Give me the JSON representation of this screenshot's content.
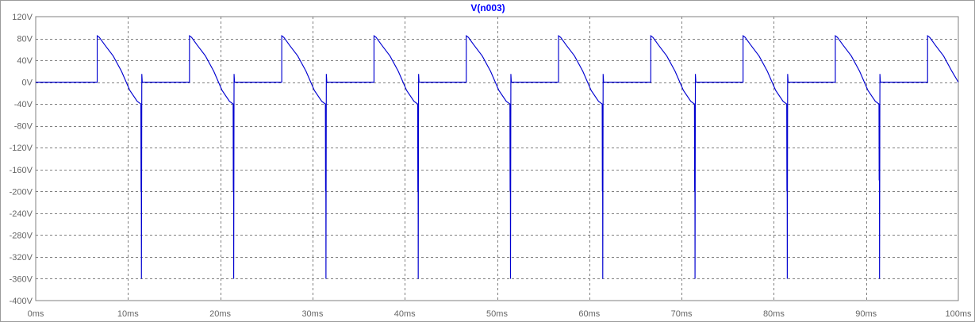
{
  "chart_data": {
    "type": "line",
    "title": "V(n003)",
    "xlabel": "",
    "ylabel": "",
    "xlim": [
      0,
      100
    ],
    "ylim": [
      -400,
      120
    ],
    "grid": true,
    "x_ticks": [
      0,
      10,
      20,
      30,
      40,
      50,
      60,
      70,
      80,
      90,
      100
    ],
    "y_ticks": [
      120,
      80,
      40,
      0,
      -40,
      -80,
      -120,
      -160,
      -200,
      -240,
      -280,
      -320,
      -360,
      -400
    ],
    "x_tick_labels": [
      "0ms",
      "10ms",
      "20ms",
      "30ms",
      "40ms",
      "50ms",
      "60ms",
      "70ms",
      "80ms",
      "90ms",
      "100ms"
    ],
    "y_tick_labels": [
      "120V",
      "80V",
      "40V",
      "0V",
      "-40V",
      "-80V",
      "-120V",
      "-160V",
      "-200V",
      "-240V",
      "-280V",
      "-320V",
      "-360V",
      "-400V"
    ],
    "series": [
      {
        "name": "V(n003)",
        "color": "#0000d0",
        "x": [
          0,
          6.667,
          6.667,
          6.9,
          7.5,
          8.4,
          9.3,
          10.2,
          11.0,
          11.4,
          11.42,
          11.44,
          11.46,
          11.5,
          11.55,
          11.55,
          16.667,
          16.667,
          16.9,
          17.5,
          18.4,
          19.3,
          20.2,
          21.0,
          21.4,
          21.42,
          21.44,
          21.46,
          21.5,
          21.55,
          21.55,
          26.667,
          26.667,
          26.9,
          27.5,
          28.4,
          29.3,
          30.2,
          31.0,
          31.4,
          31.42,
          31.44,
          31.46,
          31.5,
          31.55,
          31.55,
          36.667,
          36.667,
          36.9,
          37.5,
          38.4,
          39.3,
          40.2,
          41.0,
          41.4,
          41.42,
          41.44,
          41.46,
          41.5,
          41.55,
          41.55,
          46.667,
          46.667,
          46.9,
          47.5,
          48.4,
          49.3,
          50.2,
          51.0,
          51.4,
          51.42,
          51.44,
          51.46,
          51.5,
          51.55,
          51.55,
          56.667,
          56.667,
          56.9,
          57.5,
          58.4,
          59.3,
          60.2,
          61.0,
          61.4,
          61.42,
          61.44,
          61.46,
          61.5,
          61.55,
          61.55,
          66.667,
          66.667,
          66.9,
          67.5,
          68.4,
          69.3,
          70.2,
          71.0,
          71.4,
          71.42,
          71.44,
          71.46,
          71.5,
          71.55,
          71.55,
          76.667,
          76.667,
          76.9,
          77.5,
          78.4,
          79.3,
          80.2,
          81.0,
          81.4,
          81.42,
          81.44,
          81.46,
          81.5,
          81.55,
          81.55,
          86.667,
          86.667,
          86.9,
          87.5,
          88.4,
          89.3,
          90.2,
          91.0,
          91.4,
          91.42,
          91.44,
          91.46,
          91.5,
          91.55,
          91.55,
          96.667,
          96.667,
          96.9,
          97.5,
          98.4,
          99.3,
          100.0
        ],
        "y": [
          0,
          0,
          85,
          82,
          68,
          48,
          20,
          -15,
          -35,
          -40,
          -200,
          -40,
          -360,
          15,
          0,
          0,
          0,
          85,
          82,
          68,
          48,
          20,
          -15,
          -35,
          -40,
          -200,
          -40,
          -360,
          15,
          0,
          0,
          0,
          85,
          82,
          68,
          48,
          20,
          -15,
          -35,
          -40,
          -200,
          -40,
          -360,
          15,
          0,
          0,
          0,
          85,
          82,
          68,
          48,
          20,
          -15,
          -35,
          -40,
          -200,
          -40,
          -360,
          15,
          0,
          0,
          0,
          85,
          82,
          68,
          48,
          20,
          -15,
          -35,
          -40,
          -200,
          -40,
          -360,
          15,
          0,
          0,
          0,
          85,
          82,
          68,
          48,
          20,
          -15,
          -35,
          -40,
          -200,
          -40,
          -360,
          15,
          0,
          0,
          0,
          85,
          82,
          68,
          48,
          20,
          -15,
          -35,
          -40,
          -200,
          -40,
          -360,
          15,
          0,
          0,
          0,
          85,
          82,
          68,
          48,
          20,
          -15,
          -35,
          -40,
          -200,
          -40,
          -360,
          15,
          0,
          0,
          0,
          85,
          82,
          68,
          48,
          20,
          -15,
          -35,
          -40,
          -180,
          -40,
          -360,
          15,
          0,
          0,
          0,
          85,
          82,
          68,
          48,
          20,
          0
        ]
      }
    ]
  },
  "ui": {
    "title_color": "#0000ff",
    "axis_text_color": "#666666",
    "grid_color": "#808080",
    "background": "#ffffff"
  }
}
